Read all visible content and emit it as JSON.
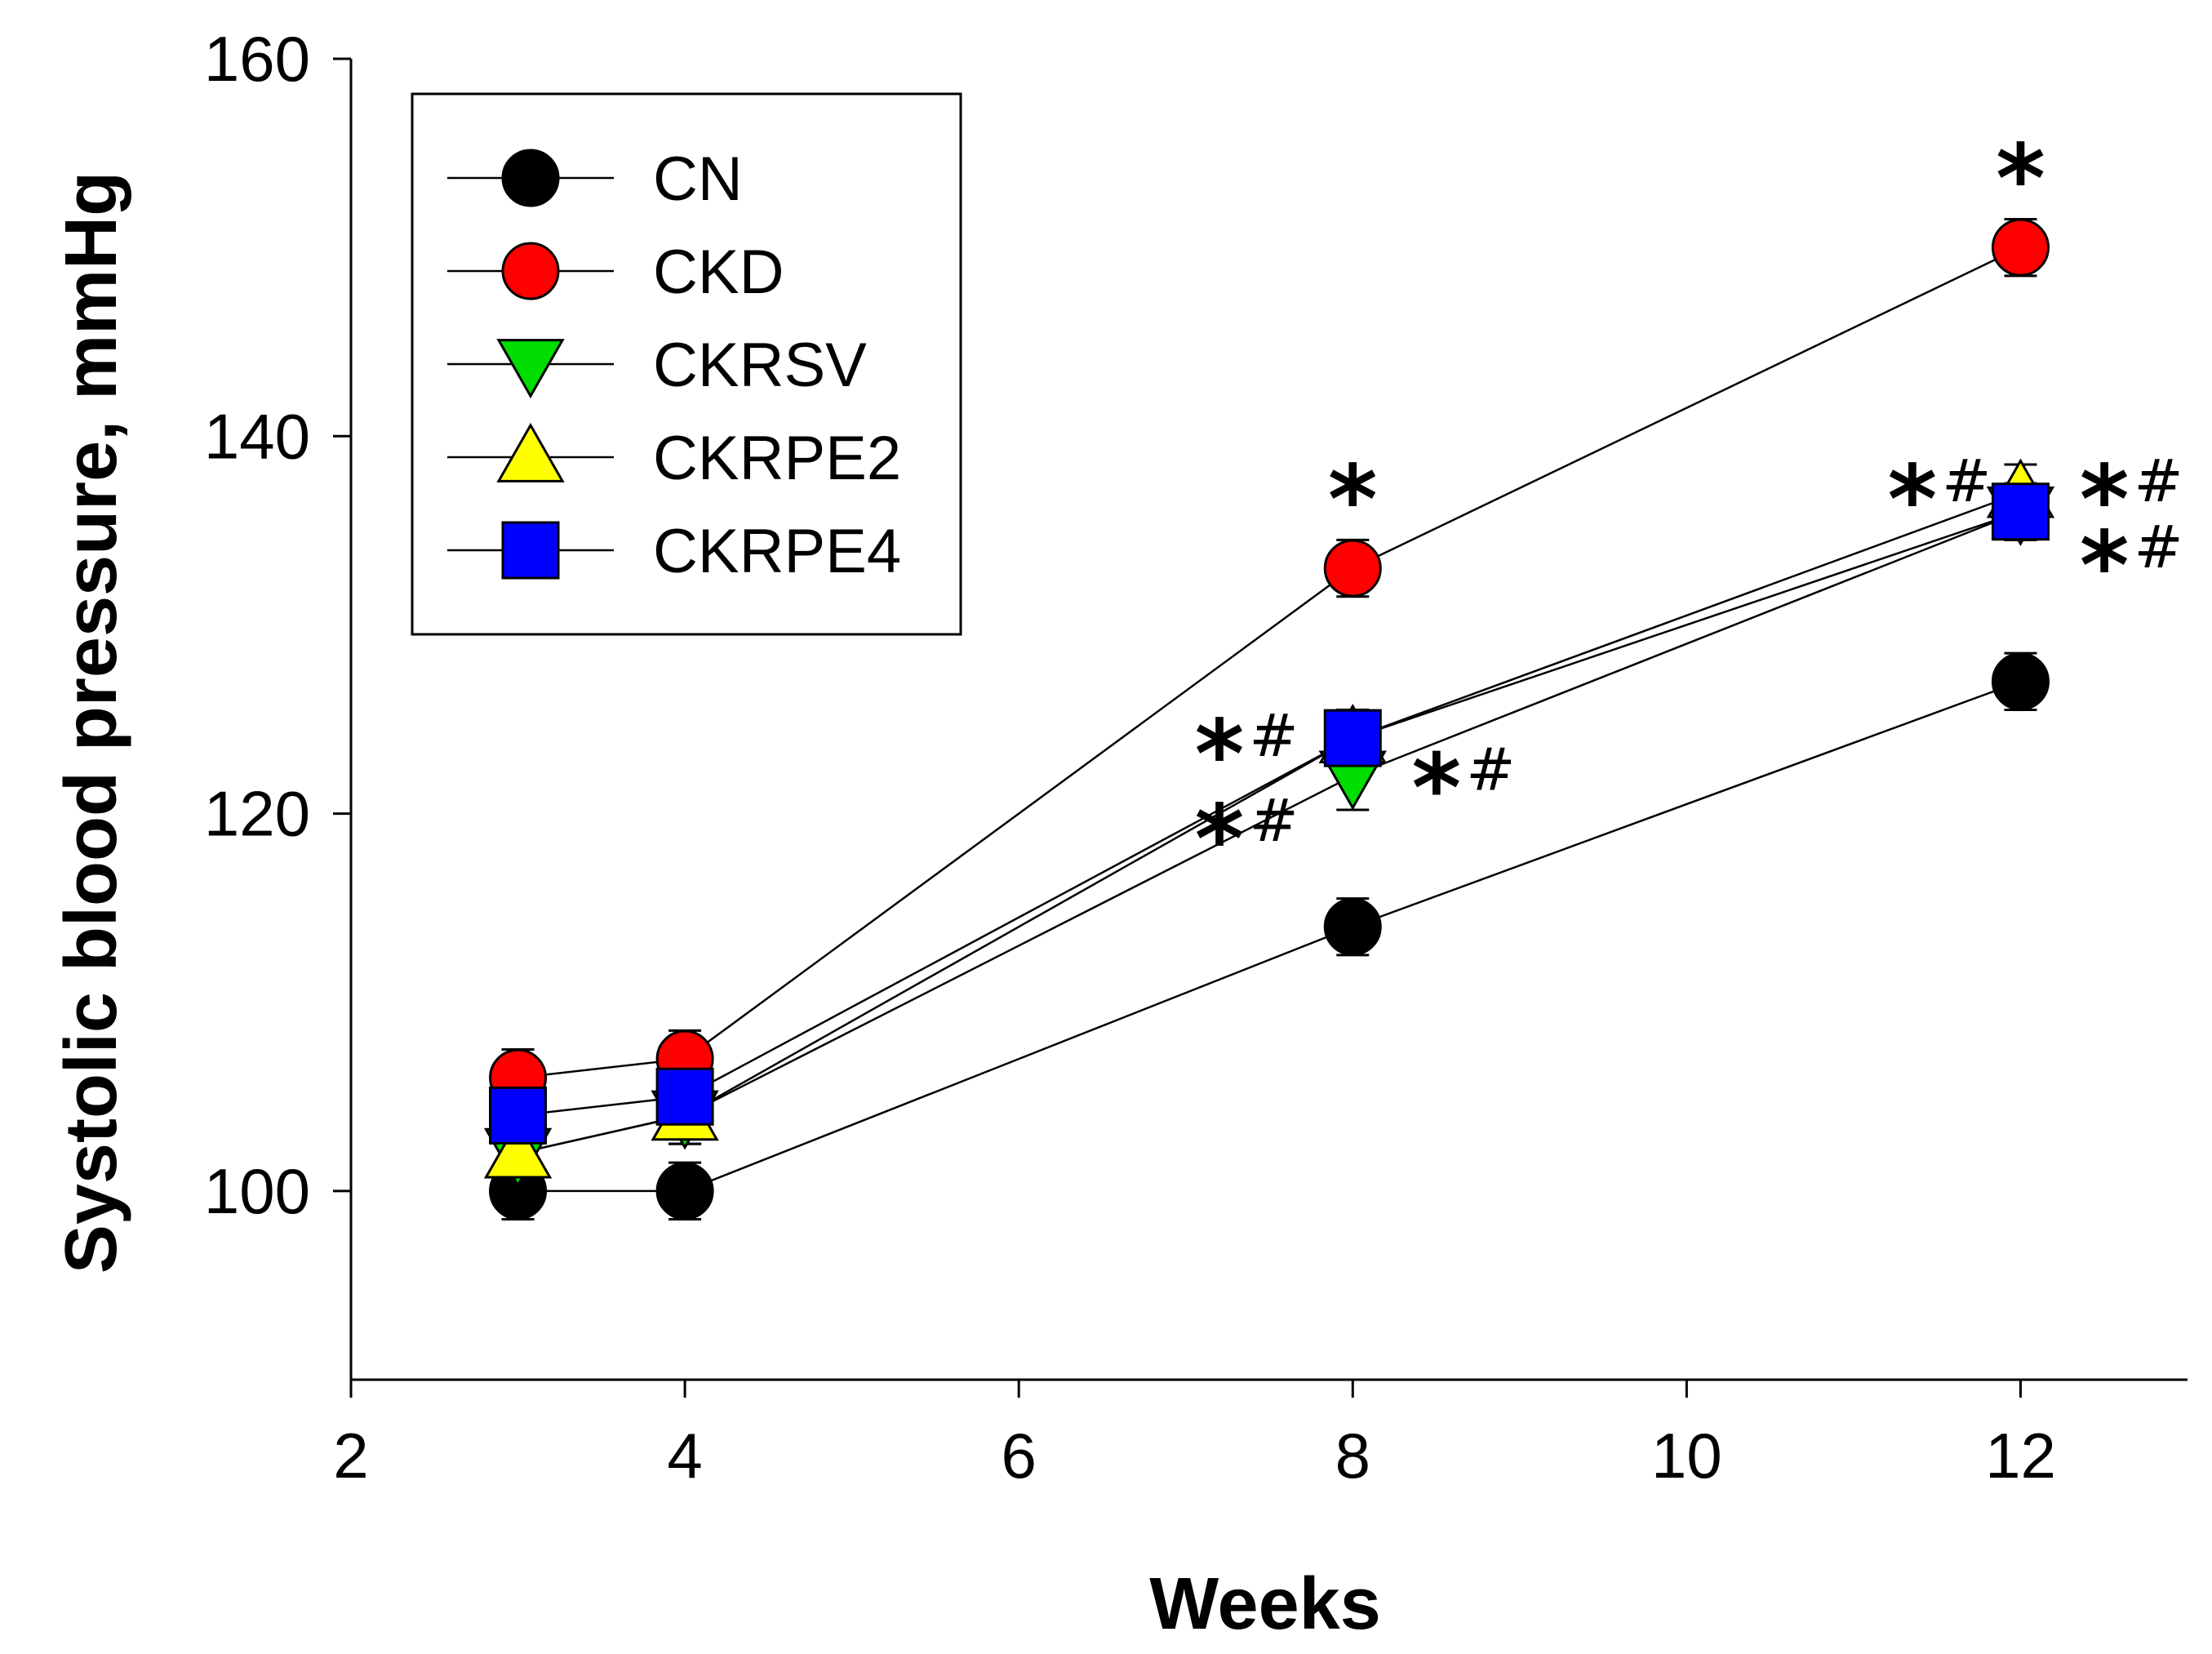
{
  "chart_data": {
    "type": "line",
    "xlabel": "Weeks",
    "ylabel": "Systolic blood pressure, mmHg",
    "xlim": [
      2,
      13
    ],
    "ylim": [
      90,
      160
    ],
    "xticks": [
      2,
      4,
      6,
      8,
      10,
      12
    ],
    "yticks": [
      100,
      120,
      140,
      160
    ],
    "x": [
      3,
      4,
      8,
      12
    ],
    "series": [
      {
        "name": "CN",
        "marker": "circle",
        "color": "#000000",
        "values": [
          100,
          100,
          114,
          127
        ],
        "errors": [
          1.5,
          1.5,
          1.5,
          1.5
        ]
      },
      {
        "name": "CKD",
        "marker": "circle",
        "color": "#ff0000",
        "values": [
          106,
          107,
          133,
          150
        ],
        "errors": [
          1.5,
          1.5,
          1.5,
          1.5
        ]
      },
      {
        "name": "CKRSV",
        "marker": "triangle-down",
        "color": "#00dd00",
        "values": [
          102,
          104,
          122,
          136
        ],
        "errors": [
          1.5,
          1.5,
          1.8,
          1.5
        ]
      },
      {
        "name": "CKRPE2",
        "marker": "triangle-up",
        "color": "#ffff00",
        "values": [
          102,
          104,
          124,
          137
        ],
        "errors": [
          1.5,
          1.5,
          1.5,
          1.5
        ]
      },
      {
        "name": "CKRPE4",
        "marker": "square",
        "color": "#0000ff",
        "values": [
          104,
          105,
          124,
          136
        ],
        "errors": [
          1.5,
          1.5,
          1.5,
          1.5
        ]
      }
    ],
    "legend_position": "top-left",
    "annotations": [
      {
        "x": 8,
        "y": 137.5,
        "star": "*",
        "hash": ""
      },
      {
        "x": 12,
        "y": 154.5,
        "star": "*",
        "hash": ""
      },
      {
        "x": 7.35,
        "y": 124,
        "star": "*",
        "hash": "#"
      },
      {
        "x": 7.35,
        "y": 119.5,
        "star": "*",
        "hash": "#"
      },
      {
        "x": 8.65,
        "y": 122.2,
        "star": "*",
        "hash": "#"
      },
      {
        "x": 11.5,
        "y": 137.5,
        "star": "*",
        "hash": "#"
      },
      {
        "x": 12.65,
        "y": 137.5,
        "star": "*",
        "hash": "#"
      },
      {
        "x": 12.65,
        "y": 134,
        "star": "*",
        "hash": "#"
      }
    ]
  }
}
